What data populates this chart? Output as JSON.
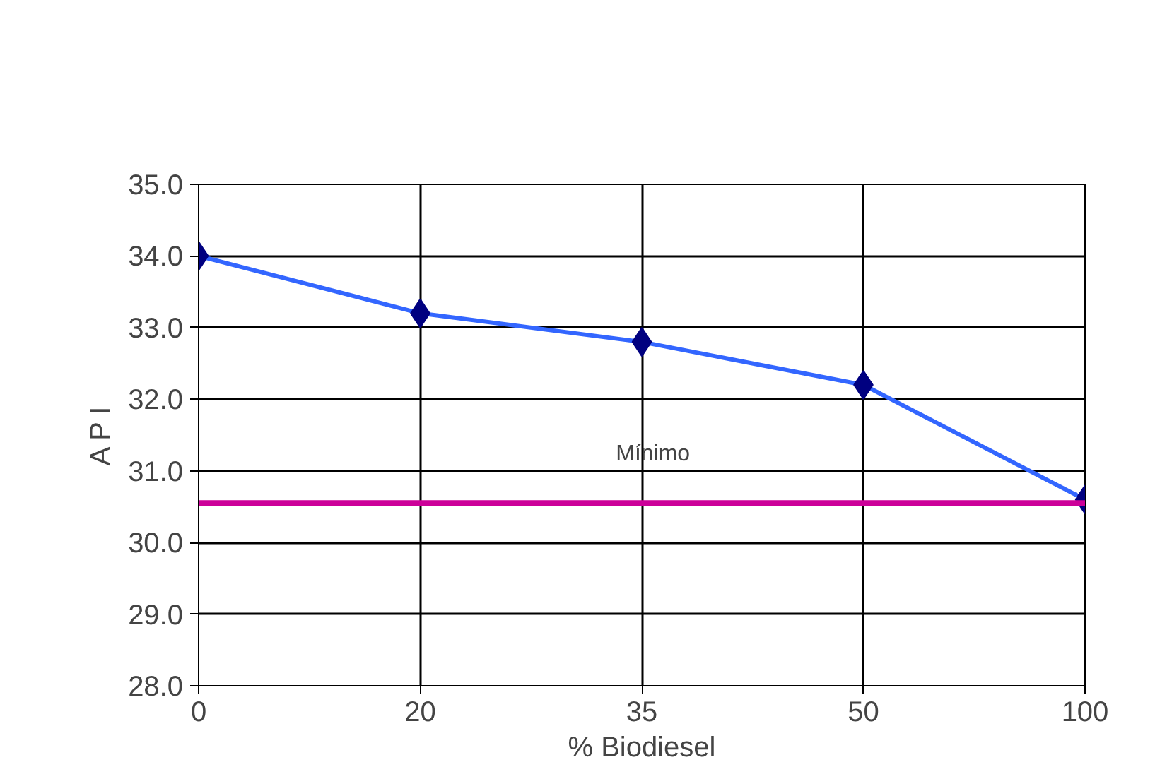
{
  "chart_data": {
    "type": "line",
    "xlabel": "% Biodiesel",
    "ylabel": "A P I",
    "categories": [
      "0",
      "20",
      "35",
      "50",
      "100"
    ],
    "series": [
      {
        "color": "#3366ff",
        "colors": [
          "#000080",
          "#000080",
          "#000080",
          "#000080",
          "#000080"
        ],
        "values": [
          34.0,
          33.2,
          32.8,
          32.2,
          30.6
        ]
      }
    ],
    "ylim": [
      28.0,
      35.0
    ],
    "yticks": [
      {
        "value": 28,
        "label": "28.0"
      },
      {
        "value": 29,
        "label": "29.0"
      },
      {
        "value": 30,
        "label": "30.0"
      },
      {
        "value": 31,
        "label": "31.0"
      },
      {
        "value": 32,
        "label": "32.0"
      },
      {
        "value": 33,
        "label": "33.0"
      },
      {
        "value": 34,
        "label": "34.0"
      },
      {
        "value": 35,
        "label": "35.0"
      }
    ],
    "ref_lines": [
      {
        "axis": "y",
        "value": 30.55,
        "label": "Mínimo",
        "color": "#cc0099"
      }
    ],
    "grid": true,
    "marker": "diamond",
    "line_style": "solid"
  }
}
